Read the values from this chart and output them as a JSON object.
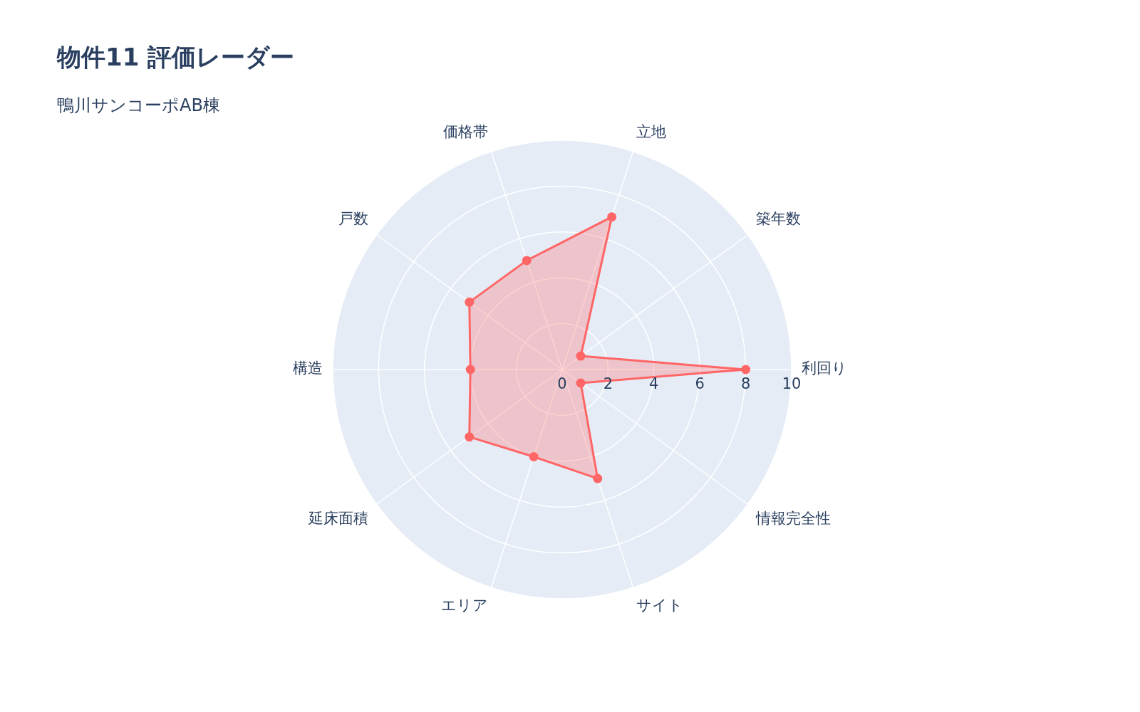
{
  "chart_data": {
    "type": "radar",
    "title": "物件11 評価レーダー",
    "subtitle": "鴨川サンコーポAB棟",
    "categories": [
      "立地",
      "築年数",
      "利回り",
      "情報完全性",
      "サイト",
      "エリア",
      "延床面積",
      "構造",
      "戸数",
      "価格帯"
    ],
    "series": [
      {
        "color": "#ff6666",
        "values": [
          7,
          1,
          8,
          1,
          5,
          4,
          5,
          4,
          5,
          5
        ]
      }
    ],
    "ylim": [
      0,
      10
    ],
    "yticks": [
      0,
      2,
      4,
      6,
      8,
      10
    ],
    "grid": true,
    "marker": "circle"
  }
}
